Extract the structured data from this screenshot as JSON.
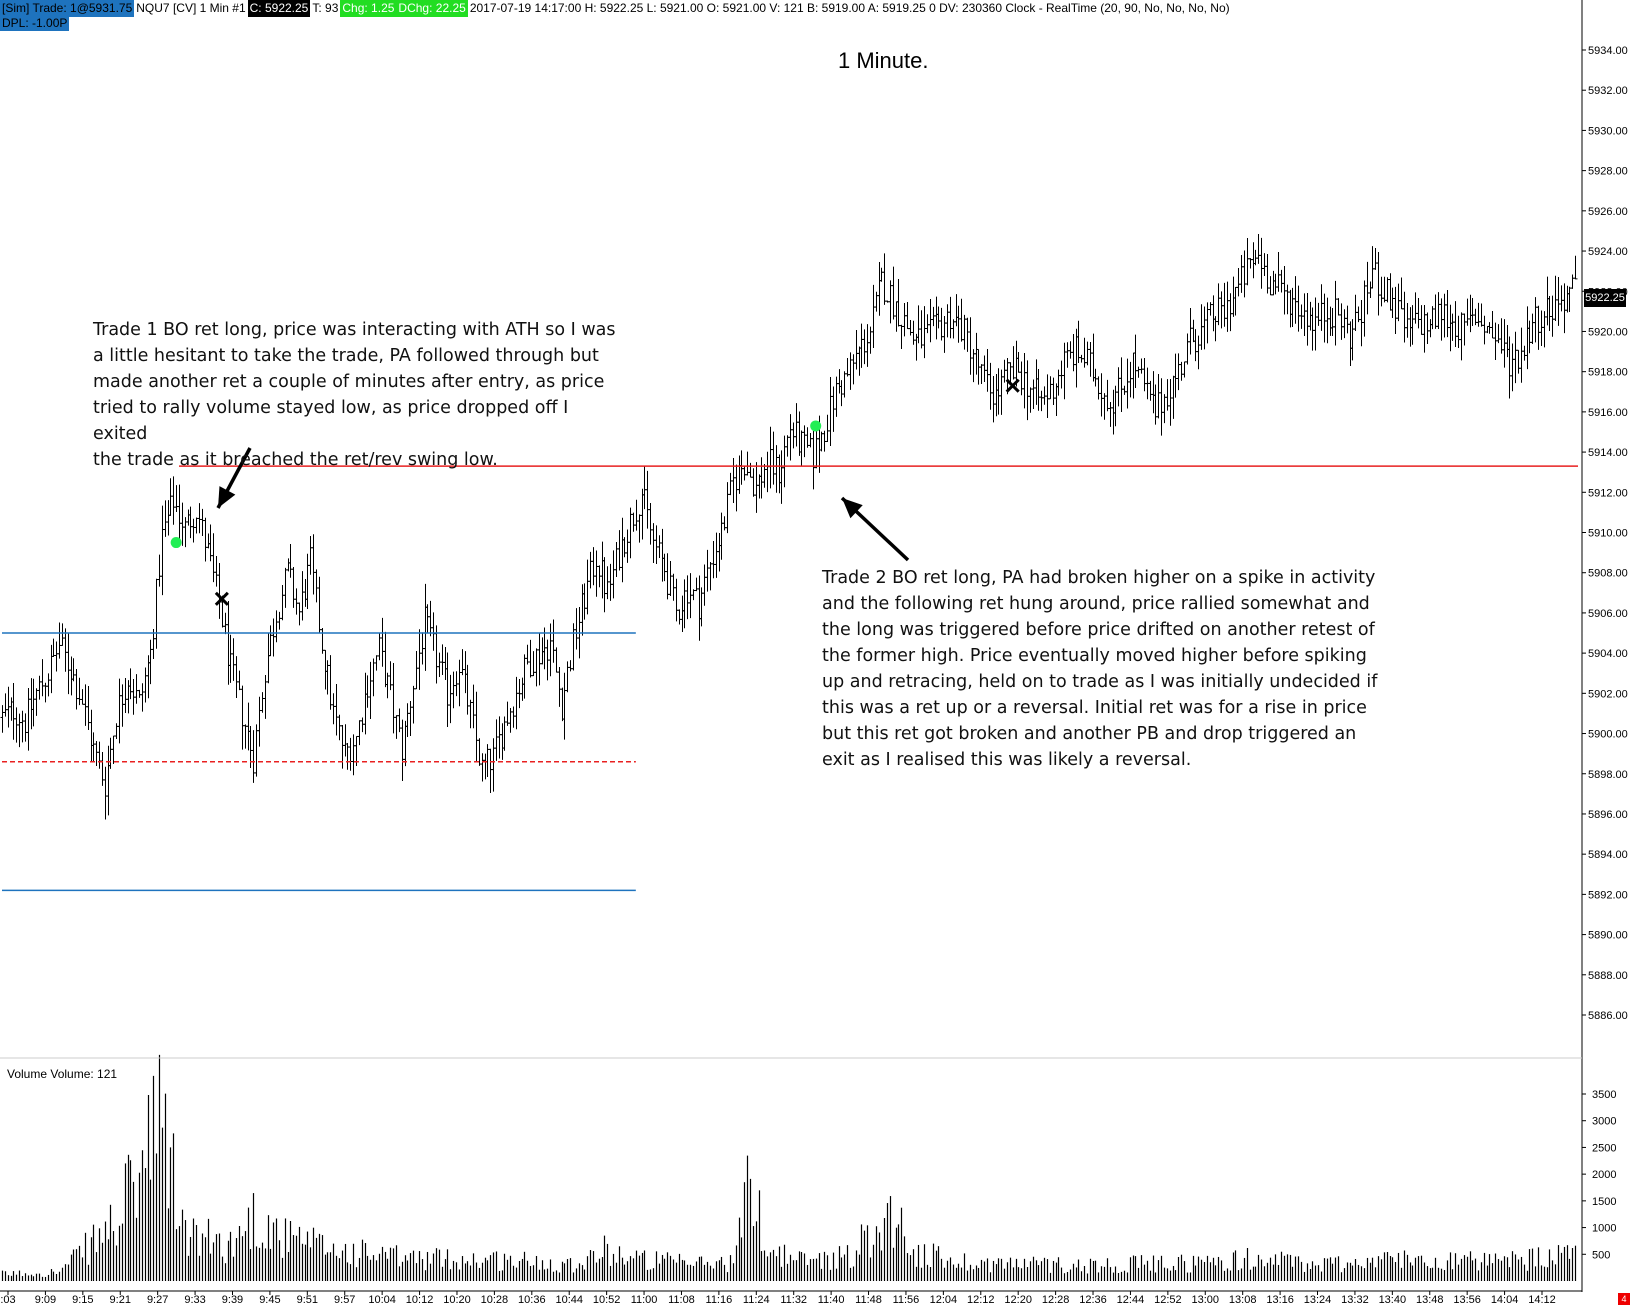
{
  "header": {
    "items": [
      {
        "text": "[Sim]  Trade: 1@5931.75",
        "style": "blue"
      },
      {
        "text": "NQU7 [CV]  1 Min  #1",
        "style": "plain"
      },
      {
        "text": "C: 5922.25",
        "style": "blk"
      },
      {
        "text": "T: 93",
        "style": "plain"
      },
      {
        "text": "Chg: 1.25",
        "style": "grn"
      },
      {
        "text": "DChg: 22.25",
        "style": "grn"
      },
      {
        "text": "2017-07-19 14:17:00  H: 5922.25  L: 5921.00  O: 5921.00  V: 121  B: 5919.00  A: 5919.25  0  DV: 230360  Clock - RealTime   (20, 90, No, No, No, No)",
        "style": "plain"
      }
    ],
    "dpl": "DPL: -1.00P"
  },
  "title": "1 Minute.",
  "current_price_label": "5922.25",
  "volume_label": "Volume  Volume: 121",
  "annotations": {
    "trade1": "Trade 1 BO ret long, price was interacting with ATH so I was\na little hesitant to take the trade, PA followed through but\nmade another ret a couple of minutes after entry, as price\ntried to rally volume stayed low, as price dropped off I exited\nthe trade as it breached the ret/rev swing low.",
    "trade2": "Trade 2 BO ret long, PA had broken higher on a spike in activity\nand the following ret hung around, price rallied somewhat and\nthe long was triggered before price drifted on another retest of\nthe former high.  Price eventually moved higher before spiking\nup and retracing, held on to trade as I was initially undecided if\nthis was a ret up or a reversal.  Initial ret was for a rise in price\nbut this ret got broken and another PB and drop triggered an\nexit as I realised this was likely a reversal."
  },
  "colors": {
    "red_line": "#e82020",
    "blue_line": "#1e73be",
    "entry_marker": "#22ee55",
    "exit_marker": "#000000"
  },
  "chart_data": {
    "type": "ohlc_bar",
    "instrument": "NQU7",
    "interval": "1 Min",
    "price_axis": {
      "ticks": [
        "5934.00",
        "5932.00",
        "5930.00",
        "5928.00",
        "5926.00",
        "5924.00",
        "5922.00",
        "5920.00",
        "5918.00",
        "5916.00",
        "5914.00",
        "5912.00",
        "5910.00",
        "5908.00",
        "5906.00",
        "5904.00",
        "5902.00",
        "5900.00",
        "5898.00",
        "5896.00",
        "5894.00",
        "5892.00",
        "5890.00",
        "5888.00",
        "5886.00"
      ],
      "range": [
        5885,
        5935.5
      ]
    },
    "volume_axis": {
      "ticks": [
        "3500",
        "3000",
        "2500",
        "2000",
        "1500",
        "1000",
        "500"
      ],
      "range": [
        0,
        3900
      ]
    },
    "time_axis": {
      "ticks": [
        ":03",
        "9:09",
        "9:15",
        "9:21",
        "9:27",
        "9:33",
        "9:39",
        "9:45",
        "9:51",
        "9:57",
        "10:04",
        "10:12",
        "10:20",
        "10:28",
        "10:36",
        "10:44",
        "10:52",
        "11:00",
        "11:08",
        "11:16",
        "11:24",
        "11:32",
        "11:40",
        "11:48",
        "11:56",
        "12:04",
        "12:12",
        "12:20",
        "12:28",
        "12:36",
        "12:44",
        "12:52",
        "13:00",
        "13:08",
        "13:16",
        "13:24",
        "13:32",
        "13:40",
        "13:48",
        "13:56",
        "14:04",
        "14:12"
      ]
    },
    "close_path": [
      [
        0,
        5900.8
      ],
      [
        4,
        5901.2
      ],
      [
        8,
        5900.6
      ],
      [
        12,
        5902.0
      ],
      [
        16,
        5903.0
      ],
      [
        20,
        5904.4
      ],
      [
        24,
        5903.2
      ],
      [
        28,
        5901.6
      ],
      [
        32,
        5899.2
      ],
      [
        36,
        5897.5
      ],
      [
        40,
        5901.0
      ],
      [
        44,
        5902.8
      ],
      [
        48,
        5901.5
      ],
      [
        52,
        5904.0
      ],
      [
        56,
        5909.8
      ],
      [
        60,
        5911.6
      ],
      [
        64,
        5910.2
      ],
      [
        68,
        5911.2
      ],
      [
        72,
        5909.0
      ],
      [
        76,
        5906.5
      ],
      [
        80,
        5903.2
      ],
      [
        84,
        5901.0
      ],
      [
        88,
        5898.8
      ],
      [
        92,
        5903.2
      ],
      [
        96,
        5906.0
      ],
      [
        100,
        5908.0
      ],
      [
        104,
        5906.0
      ],
      [
        108,
        5908.5
      ],
      [
        112,
        5904.5
      ],
      [
        116,
        5901.0
      ],
      [
        120,
        5899.0
      ],
      [
        124,
        5899.8
      ],
      [
        128,
        5902.5
      ],
      [
        132,
        5904.2
      ],
      [
        136,
        5901.8
      ],
      [
        140,
        5899.2
      ],
      [
        144,
        5902.5
      ],
      [
        148,
        5905.5
      ],
      [
        152,
        5903.8
      ],
      [
        156,
        5902.0
      ],
      [
        160,
        5903.5
      ],
      [
        164,
        5901.0
      ],
      [
        168,
        5898.2
      ],
      [
        172,
        5898.8
      ],
      [
        176,
        5900.5
      ],
      [
        180,
        5902.0
      ],
      [
        184,
        5903.5
      ],
      [
        188,
        5904.0
      ],
      [
        192,
        5904.5
      ],
      [
        196,
        5901.5
      ],
      [
        200,
        5904.5
      ],
      [
        204,
        5906.8
      ],
      [
        208,
        5908.8
      ],
      [
        212,
        5907.0
      ],
      [
        216,
        5909.0
      ],
      [
        220,
        5910.5
      ],
      [
        224,
        5912.0
      ],
      [
        228,
        5909.5
      ],
      [
        232,
        5908.2
      ],
      [
        236,
        5906.0
      ],
      [
        240,
        5907.2
      ],
      [
        244,
        5906.5
      ],
      [
        248,
        5908.5
      ],
      [
        252,
        5910.0
      ],
      [
        256,
        5912.5
      ],
      [
        260,
        5913.5
      ],
      [
        264,
        5912.2
      ],
      [
        268,
        5913.5
      ],
      [
        272,
        5913.0
      ],
      [
        276,
        5915.2
      ],
      [
        280,
        5914.3
      ],
      [
        284,
        5913.8
      ],
      [
        288,
        5915.2
      ],
      [
        292,
        5917.0
      ],
      [
        296,
        5917.8
      ],
      [
        300,
        5919.0
      ],
      [
        304,
        5920.0
      ],
      [
        308,
        5922.5
      ],
      [
        312,
        5921.5
      ],
      [
        316,
        5920.5
      ],
      [
        320,
        5919.5
      ],
      [
        324,
        5919.8
      ],
      [
        328,
        5920.2
      ],
      [
        332,
        5920.8
      ],
      [
        336,
        5920.2
      ],
      [
        340,
        5919.0
      ],
      [
        344,
        5917.5
      ],
      [
        348,
        5916.8
      ],
      [
        352,
        5917.8
      ],
      [
        356,
        5918.0
      ],
      [
        360,
        5917.2
      ],
      [
        364,
        5916.5
      ],
      [
        368,
        5917.2
      ],
      [
        372,
        5918.5
      ],
      [
        376,
        5919.0
      ],
      [
        380,
        5918.5
      ],
      [
        384,
        5917.5
      ],
      [
        388,
        5916.5
      ],
      [
        392,
        5917.2
      ],
      [
        396,
        5918.5
      ],
      [
        400,
        5917.2
      ],
      [
        404,
        5916.0
      ],
      [
        408,
        5917.0
      ],
      [
        412,
        5918.0
      ],
      [
        416,
        5919.5
      ],
      [
        420,
        5920.0
      ],
      [
        424,
        5920.8
      ],
      [
        428,
        5921.0
      ],
      [
        432,
        5922.0
      ],
      [
        436,
        5923.0
      ],
      [
        440,
        5923.8
      ],
      [
        444,
        5922.5
      ],
      [
        448,
        5922.0
      ],
      [
        452,
        5921.5
      ],
      [
        456,
        5921.0
      ],
      [
        460,
        5920.5
      ],
      [
        464,
        5921.0
      ],
      [
        468,
        5920.8
      ],
      [
        472,
        5919.8
      ],
      [
        476,
        5921.0
      ],
      [
        480,
        5923.0
      ],
      [
        484,
        5922.0
      ],
      [
        488,
        5921.2
      ],
      [
        492,
        5920.0
      ],
      [
        496,
        5920.5
      ],
      [
        500,
        5920.3
      ],
      [
        504,
        5921.0
      ],
      [
        508,
        5920.5
      ],
      [
        512,
        5920.0
      ],
      [
        516,
        5920.8
      ],
      [
        520,
        5920.2
      ],
      [
        524,
        5919.5
      ],
      [
        528,
        5918.5
      ],
      [
        532,
        5919.0
      ],
      [
        536,
        5920.5
      ],
      [
        540,
        5921.0
      ],
      [
        544,
        5921.3
      ],
      [
        548,
        5921.8
      ],
      [
        552,
        5922.25
      ]
    ],
    "volume_profile": [
      [
        0,
        150
      ],
      [
        20,
        200
      ],
      [
        40,
        1300
      ],
      [
        56,
        3500
      ],
      [
        60,
        2200
      ],
      [
        64,
        1000
      ],
      [
        80,
        800
      ],
      [
        88,
        1400
      ],
      [
        100,
        900
      ],
      [
        120,
        650
      ],
      [
        140,
        500
      ],
      [
        160,
        480
      ],
      [
        180,
        450
      ],
      [
        200,
        380
      ],
      [
        212,
        700
      ],
      [
        220,
        500
      ],
      [
        240,
        380
      ],
      [
        256,
        420
      ],
      [
        262,
        2200
      ],
      [
        268,
        700
      ],
      [
        280,
        450
      ],
      [
        296,
        550
      ],
      [
        312,
        1500
      ],
      [
        320,
        600
      ],
      [
        340,
        400
      ],
      [
        380,
        350
      ],
      [
        420,
        400
      ],
      [
        440,
        500
      ],
      [
        460,
        350
      ],
      [
        480,
        450
      ],
      [
        500,
        500
      ],
      [
        520,
        400
      ],
      [
        540,
        500
      ],
      [
        552,
        600
      ]
    ],
    "levels": [
      {
        "price": 5913.3,
        "style": "solid-red",
        "from_bar": 62,
        "to_bar": 552
      },
      {
        "price": 5905.0,
        "style": "solid-blue",
        "from_bar": 0,
        "to_bar": 222
      },
      {
        "price": 5898.6,
        "style": "dashed-red",
        "from_bar": 0,
        "to_bar": 222
      },
      {
        "price": 5892.2,
        "style": "solid-blue",
        "from_bar": 0,
        "to_bar": 222
      }
    ],
    "markers": [
      {
        "type": "entry",
        "bar": 61,
        "price": 5909.5
      },
      {
        "type": "exit",
        "bar": 77,
        "price": 5906.7
      },
      {
        "type": "entry",
        "bar": 285,
        "price": 5915.3
      },
      {
        "type": "exit",
        "bar": 354,
        "price": 5917.3
      }
    ]
  }
}
